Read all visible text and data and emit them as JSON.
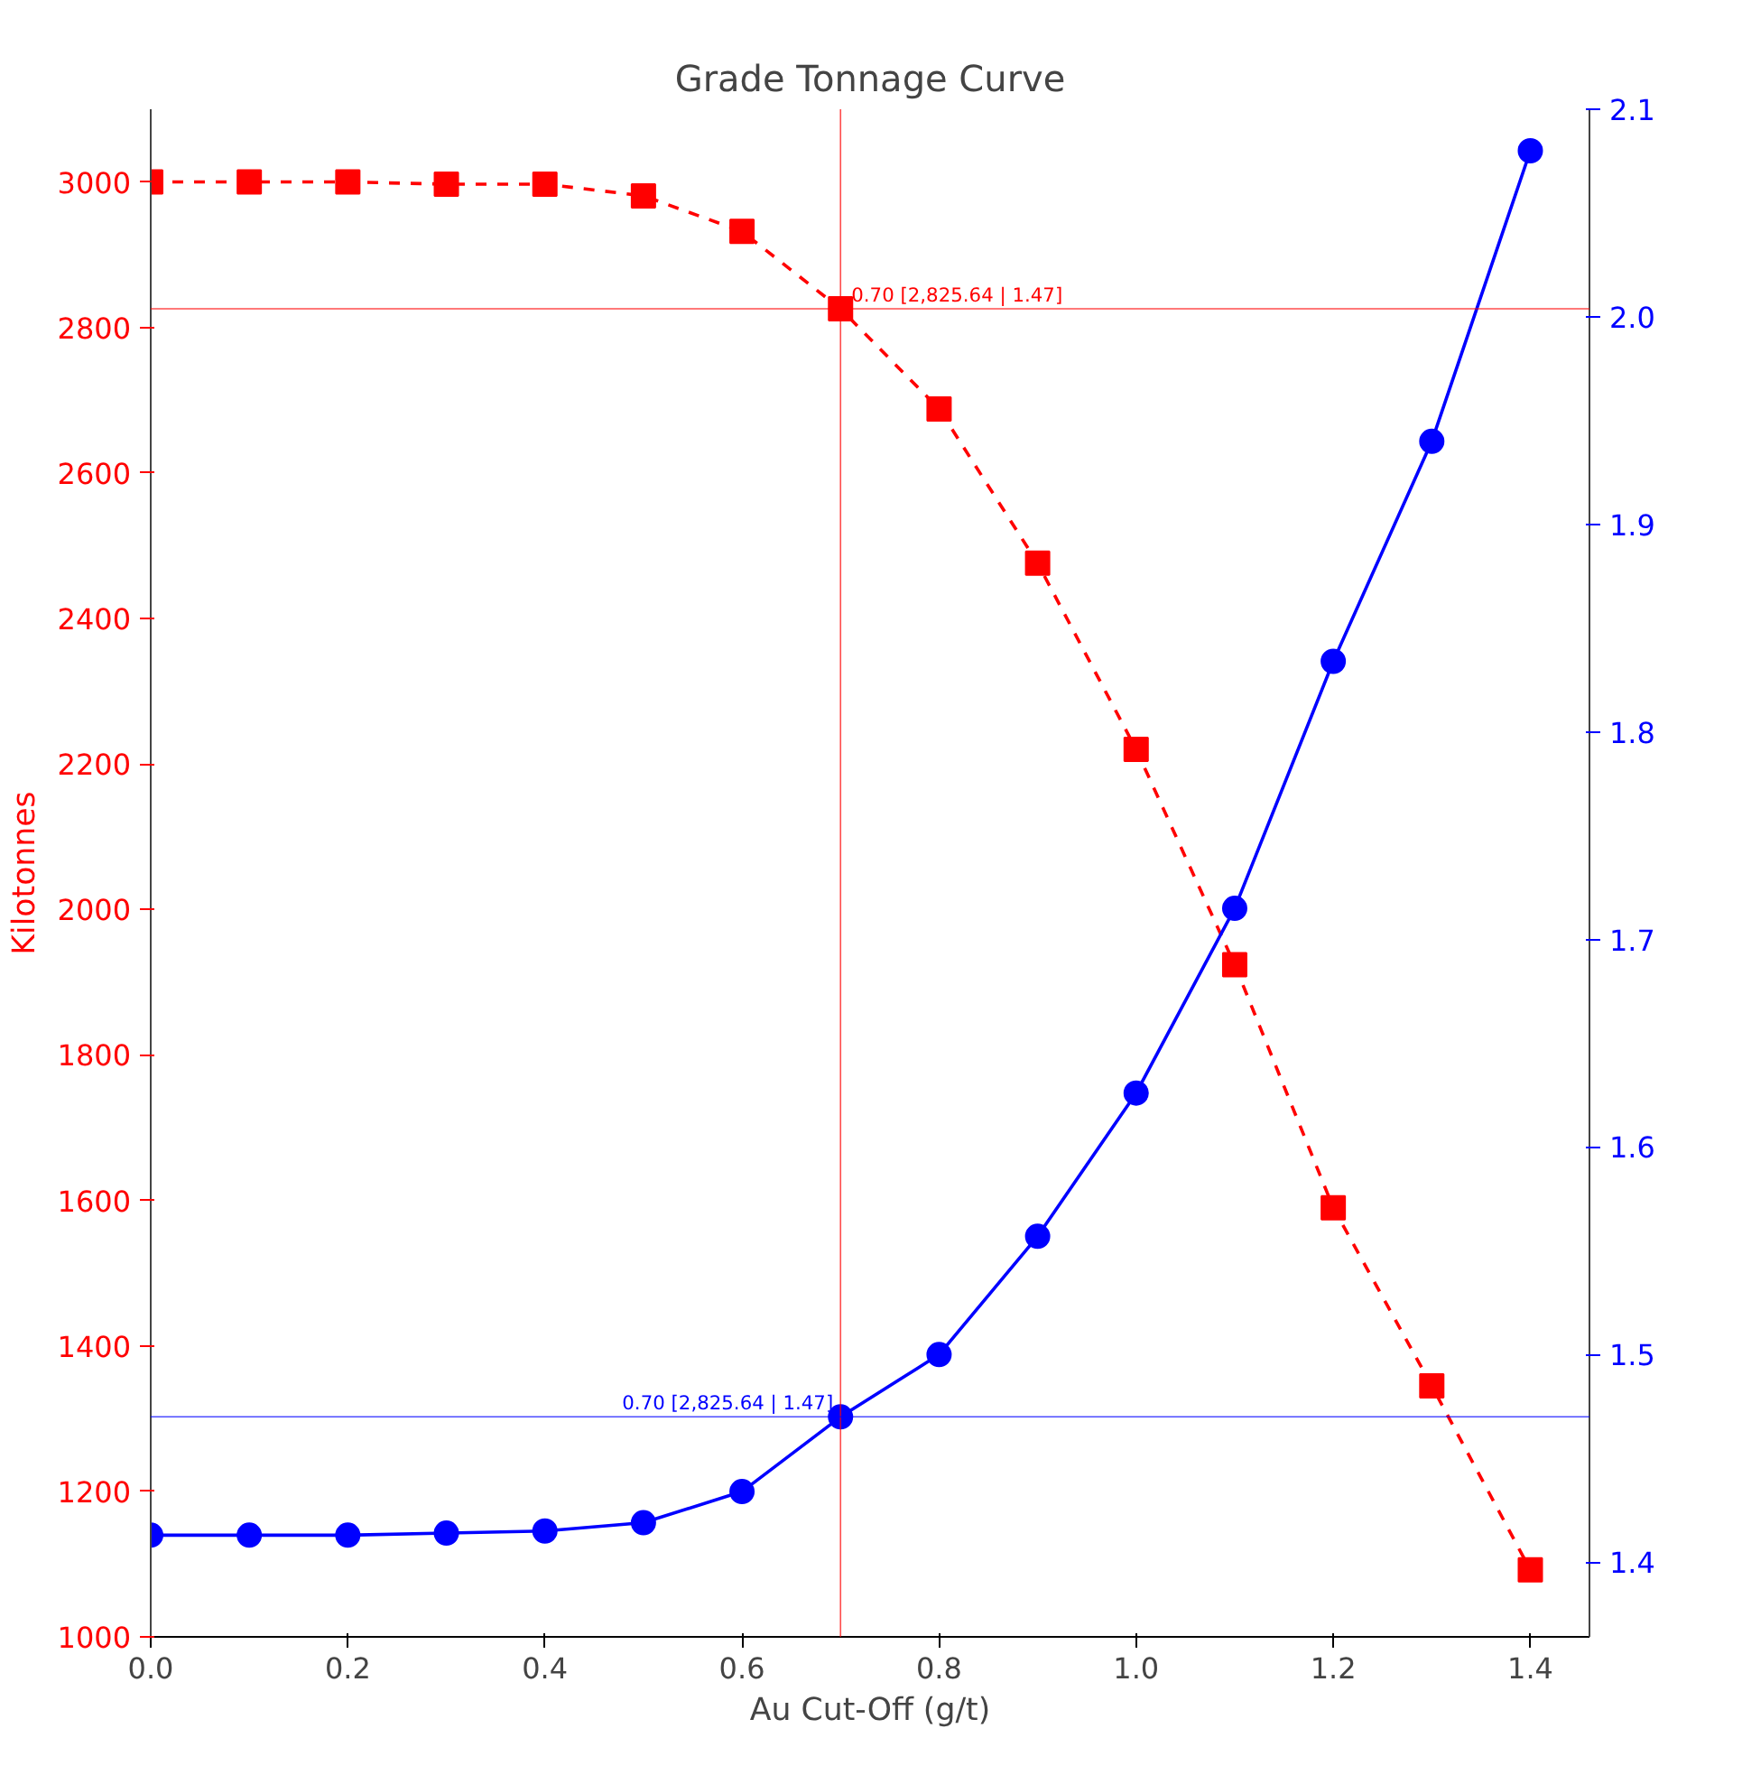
{
  "chart_data": {
    "type": "line",
    "title": "Grade Tonnage Curve",
    "xlabel": "Au Cut-Off (g/t)",
    "ylabel": "Kilotonnes",
    "x": [
      0.0,
      0.1,
      0.2,
      0.3,
      0.4,
      0.5,
      0.6,
      0.7,
      0.8,
      0.9,
      1.0,
      1.1,
      1.2,
      1.3,
      1.4
    ],
    "series": [
      {
        "color": "#ff0000",
        "marker": "square",
        "line_style": "dashed",
        "values": [
          3000,
          3000,
          3000,
          2997,
          2997,
          2981,
          2932,
          2825.64,
          2688,
          2476,
          2220,
          1924,
          1590,
          1345,
          1092
        ]
      },
      {
        "color": "#0000ff",
        "marker": "circle",
        "line_style": "solid",
        "axis": "y2",
        "values": [
          1.413,
          1.413,
          1.413,
          1.414,
          1.415,
          1.419,
          1.434,
          1.47,
          1.5,
          1.557,
          1.626,
          1.715,
          1.834,
          1.94,
          2.08
        ]
      }
    ],
    "xlim": [
      0,
      1.46
    ],
    "ylim": [
      1000,
      3100
    ],
    "y2lim": [
      1.364,
      2.1
    ],
    "xticks": [
      {
        "value": 0,
        "label": "0.0"
      },
      0.2,
      0.4,
      0.6,
      0.8,
      {
        "value": 1,
        "label": "1.0"
      },
      1.2,
      1.4
    ],
    "yticks": [
      1000,
      1200,
      1400,
      1600,
      1800,
      2000,
      2200,
      2400,
      2600,
      2800,
      3000
    ],
    "y2ticks": [
      1.4,
      1.5,
      1.6,
      1.7,
      1.8,
      1.9,
      {
        "value": 2,
        "label": "2.0"
      },
      2.1
    ],
    "ref_lines": [
      {
        "axis": "x",
        "value": 0.7,
        "color": "#ff0000"
      },
      {
        "axis": "y",
        "value": 2825.64,
        "color": "#ff0000"
      },
      {
        "axis": "y2",
        "value": 1.47,
        "color": "#0000ff"
      }
    ],
    "annotations": [
      {
        "text": "0.70 [2,825.64 | 1.47]",
        "x": 0.7,
        "y": 2825.64
      },
      "0.70 [2,825.64 | 1.47]"
    ],
    "grid": false
  }
}
